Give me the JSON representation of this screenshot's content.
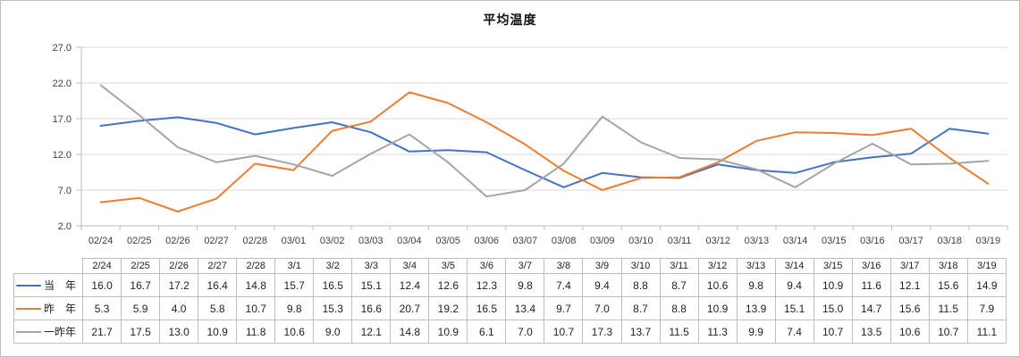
{
  "chart_data": {
    "type": "line",
    "title": "平均温度",
    "categories": [
      "02/24",
      "02/25",
      "02/26",
      "02/27",
      "02/28",
      "03/01",
      "03/02",
      "03/03",
      "03/04",
      "03/05",
      "03/06",
      "03/07",
      "03/08",
      "03/09",
      "03/10",
      "03/11",
      "03/12",
      "03/13",
      "03/14",
      "03/15",
      "03/16",
      "03/17",
      "03/18",
      "03/19"
    ],
    "table_headers": [
      "2/24",
      "2/25",
      "2/26",
      "2/27",
      "2/28",
      "3/1",
      "3/2",
      "3/3",
      "3/4",
      "3/5",
      "3/6",
      "3/7",
      "3/8",
      "3/9",
      "3/10",
      "3/11",
      "3/12",
      "3/13",
      "3/14",
      "3/15",
      "3/16",
      "3/17",
      "3/18",
      "3/19"
    ],
    "series": [
      {
        "key": "current-year",
        "name": "当　年",
        "color": "#4472C4",
        "values": [
          16.0,
          16.7,
          17.2,
          16.4,
          14.8,
          15.7,
          16.5,
          15.1,
          12.4,
          12.6,
          12.3,
          9.8,
          7.4,
          9.4,
          8.8,
          8.7,
          10.6,
          9.8,
          9.4,
          10.9,
          11.6,
          12.1,
          15.6,
          14.9
        ]
      },
      {
        "key": "last-year",
        "name": "昨　年",
        "color": "#ED7D31",
        "values": [
          5.3,
          5.9,
          4.0,
          5.8,
          10.7,
          9.8,
          15.3,
          16.6,
          20.7,
          19.2,
          16.5,
          13.4,
          9.7,
          7.0,
          8.7,
          8.8,
          10.9,
          13.9,
          15.1,
          15.0,
          14.7,
          15.6,
          11.5,
          7.9
        ]
      },
      {
        "key": "year-before-last",
        "name": "一昨年",
        "color": "#A5A5A5",
        "values": [
          21.7,
          17.5,
          13.0,
          10.9,
          11.8,
          10.6,
          9.0,
          12.1,
          14.8,
          10.9,
          6.1,
          7.0,
          10.7,
          17.3,
          13.7,
          11.5,
          11.3,
          9.9,
          7.4,
          10.7,
          13.5,
          10.6,
          10.7,
          11.1
        ]
      }
    ],
    "ylim": [
      2.0,
      27.0
    ],
    "y_tick_step": 5.0,
    "y_tick_labels": [
      "2.0",
      "7.0",
      "12.0",
      "17.0",
      "22.0",
      "27.0"
    ],
    "grid": "horizontal",
    "legend_position": "data-table-left",
    "colors": {
      "grid": "#D9D9D9",
      "axis": "#BFBFBF",
      "table_border": "#BFBFBF",
      "axis_text": "#3F3F3F"
    }
  }
}
